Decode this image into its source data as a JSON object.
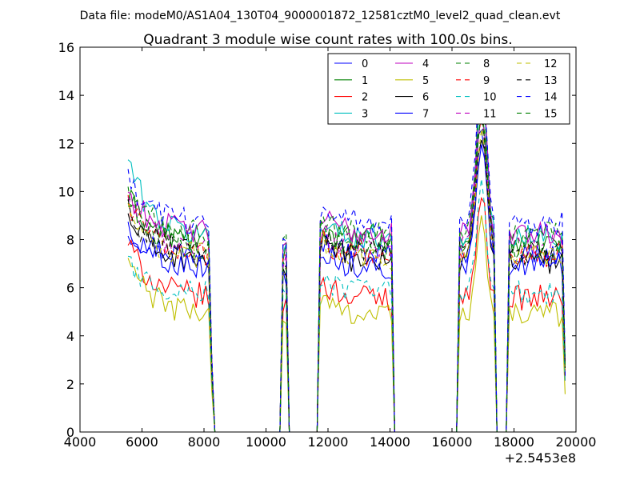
{
  "figure": {
    "suptitle": "Data file: modeM0/AS1A04_130T04_9000001872_12581cztM0_level2_quad_clean.evt"
  },
  "chart_data": {
    "type": "line",
    "title": "Quadrant 3 module wise count rates with 100.0s bins.",
    "xlabel": "",
    "ylabel": "",
    "x_offset_label": "+2.5453e8",
    "xlim": [
      4000,
      20000
    ],
    "ylim": [
      0,
      16
    ],
    "x_ticks": [
      4000,
      6000,
      8000,
      10000,
      12000,
      14000,
      16000,
      18000,
      20000
    ],
    "y_ticks": [
      0,
      2,
      4,
      6,
      8,
      10,
      12,
      14,
      16
    ],
    "grid": false,
    "legend_position": "top-right",
    "legend_columns": 4,
    "segments": [
      {
        "start": 5550,
        "end": 8250,
        "peak": false
      },
      {
        "start": 10500,
        "end": 10700,
        "peak": true
      },
      {
        "start": 11750,
        "end": 14100,
        "peak": false
      },
      {
        "start": 16200,
        "end": 17400,
        "peak": false
      },
      {
        "start": 17850,
        "end": 19650,
        "peak": false
      }
    ],
    "series": [
      {
        "name": "0",
        "color": "#0000ff",
        "dash": "solid",
        "level": 7.4,
        "start_value": 8.4
      },
      {
        "name": "1",
        "color": "#008000",
        "dash": "solid",
        "level": 7.9,
        "start_value": 9.8
      },
      {
        "name": "2",
        "color": "#ff0000",
        "dash": "solid",
        "level": 5.6,
        "start_value": 7.9
      },
      {
        "name": "3",
        "color": "#00bfbf",
        "dash": "solid",
        "level": 8.1,
        "start_value": 11.4
      },
      {
        "name": "4",
        "color": "#bf00bf",
        "dash": "solid",
        "level": 8.3,
        "start_value": 10.0
      },
      {
        "name": "5",
        "color": "#bfbf00",
        "dash": "solid",
        "level": 4.9,
        "start_value": 7.2
      },
      {
        "name": "6",
        "color": "#000000",
        "dash": "solid",
        "level": 7.1,
        "start_value": 9.0
      },
      {
        "name": "7",
        "color": "#0000ff",
        "dash": "solid",
        "level": 6.9,
        "start_value": 8.6
      },
      {
        "name": "8",
        "color": "#008000",
        "dash": "dashed",
        "level": 8.2,
        "start_value": 10.0
      },
      {
        "name": "9",
        "color": "#ff0000",
        "dash": "dashed",
        "level": 7.4,
        "start_value": 9.6
      },
      {
        "name": "10",
        "color": "#00bfbf",
        "dash": "dashed",
        "level": 5.8,
        "start_value": 7.0
      },
      {
        "name": "11",
        "color": "#bf00bf",
        "dash": "dashed",
        "level": 7.7,
        "start_value": 9.4
      },
      {
        "name": "12",
        "color": "#bfbf00",
        "dash": "dashed",
        "level": 7.3,
        "start_value": 9.1
      },
      {
        "name": "13",
        "color": "#000000",
        "dash": "dashed",
        "level": 7.5,
        "start_value": 9.2
      },
      {
        "name": "14",
        "color": "#0000ff",
        "dash": "dashed",
        "level": 8.7,
        "start_value": 10.4
      },
      {
        "name": "15",
        "color": "#008000",
        "dash": "dashed",
        "level": 7.6,
        "start_value": 9.9
      }
    ]
  }
}
